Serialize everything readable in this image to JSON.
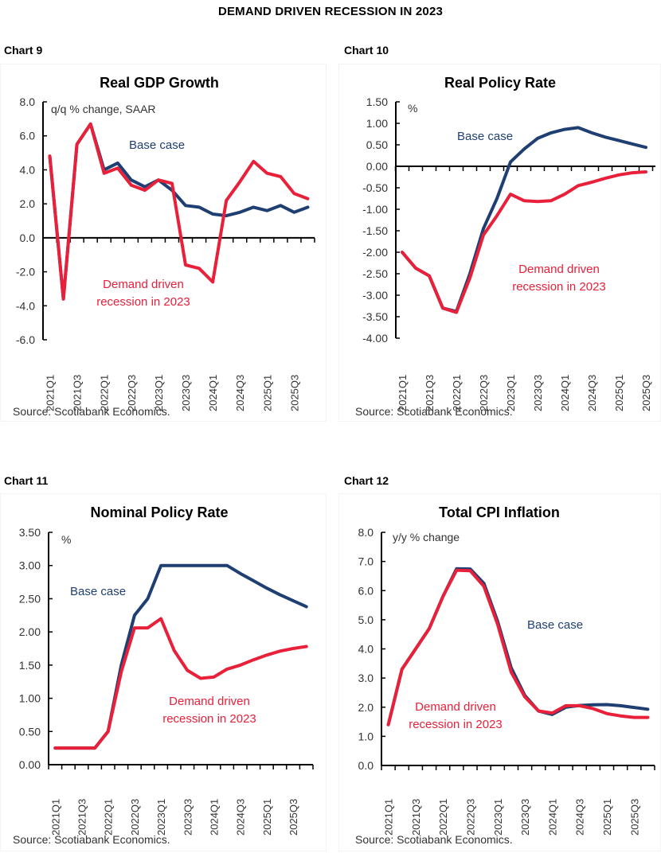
{
  "page": {
    "title": "DEMAND DRIVEN RECESSION IN 2023"
  },
  "colors": {
    "base_case": "#1f3f73",
    "recession": "#e8203a",
    "axis": "#000000"
  },
  "chart_data": [
    {
      "id": "chart9",
      "label": "Chart 9",
      "type": "line",
      "title": "Real GDP Growth",
      "unit_label": "q/q % change, SAAR",
      "source": "Source: Scotiabank Economics.",
      "ylim": [
        -6.0,
        8.0
      ],
      "yticks": [
        8.0,
        6.0,
        4.0,
        2.0,
        0.0,
        -2.0,
        -4.0,
        -6.0
      ],
      "ytick_labels": [
        "8.0",
        "6.0",
        "4.0",
        "2.0",
        "0.0",
        "-2.0",
        "-4.0",
        "-6.0"
      ],
      "x": [
        "2021Q1",
        "2021Q2",
        "2021Q3",
        "2021Q4",
        "2022Q1",
        "2022Q2",
        "2022Q3",
        "2022Q4",
        "2023Q1",
        "2023Q2",
        "2023Q3",
        "2023Q4",
        "2024Q1",
        "2024Q2",
        "2024Q3",
        "2024Q4",
        "2025Q1",
        "2025Q2",
        "2025Q3",
        "2025Q4"
      ],
      "xtick_labels": [
        "2021Q1",
        "2021Q3",
        "2022Q1",
        "2022Q3",
        "2023Q1",
        "2023Q3",
        "2024Q1",
        "2024Q3",
        "2025Q1",
        "2025Q3"
      ],
      "series": [
        {
          "name": "Base case",
          "values": [
            4.8,
            -3.6,
            5.5,
            6.7,
            4.0,
            4.4,
            3.4,
            3.0,
            3.4,
            2.8,
            1.9,
            1.8,
            1.4,
            1.3,
            1.5,
            1.8,
            1.6,
            1.9,
            1.5,
            1.8
          ]
        },
        {
          "name": "Demand driven recession in 2023",
          "values": [
            4.8,
            -3.6,
            5.5,
            6.7,
            3.8,
            4.1,
            3.1,
            2.8,
            3.4,
            3.2,
            -1.6,
            -1.8,
            -2.6,
            2.2,
            3.3,
            4.5,
            3.8,
            3.6,
            2.6,
            2.3
          ]
        }
      ],
      "annotations": {
        "base_case": [
          "Base case"
        ],
        "recession": [
          "Demand driven",
          "recession in 2023"
        ]
      }
    },
    {
      "id": "chart10",
      "label": "Chart 10",
      "type": "line",
      "title": "Real Policy Rate",
      "unit_label": "%",
      "source": "Source: Scotiabank Economics.",
      "ylim": [
        -4.0,
        1.5
      ],
      "yticks": [
        1.5,
        1.0,
        0.5,
        0.0,
        -0.5,
        -1.0,
        -1.5,
        -2.0,
        -2.5,
        -3.0,
        -3.5,
        -4.0
      ],
      "ytick_labels": [
        "1.50",
        "1.00",
        "0.50",
        "0.00",
        "-0.50",
        "-1.00",
        "-1.50",
        "-2.00",
        "-2.50",
        "-3.00",
        "-3.50",
        "-4.00"
      ],
      "x": [
        "2021Q1",
        "2021Q2",
        "2021Q3",
        "2021Q4",
        "2022Q1",
        "2022Q2",
        "2022Q3",
        "2022Q4",
        "2023Q1",
        "2023Q2",
        "2023Q3",
        "2023Q4",
        "2024Q1",
        "2024Q2",
        "2024Q3",
        "2024Q4",
        "2025Q1",
        "2025Q2",
        "2025Q3"
      ],
      "xtick_labels": [
        "2021Q1",
        "2021Q3",
        "2022Q1",
        "2022Q3",
        "2023Q1",
        "2023Q3",
        "2024Q1",
        "2024Q3",
        "2025Q1",
        "2025Q3"
      ],
      "series": [
        {
          "name": "Base case",
          "values": [
            -2.0,
            -2.37,
            -2.55,
            -3.3,
            -3.38,
            -2.5,
            -1.45,
            -0.75,
            0.1,
            0.4,
            0.65,
            0.78,
            0.86,
            0.9,
            0.78,
            0.68,
            0.6,
            0.52,
            0.44
          ]
        },
        {
          "name": "Demand driven recession in 2023",
          "values": [
            -2.0,
            -2.37,
            -2.55,
            -3.3,
            -3.4,
            -2.6,
            -1.6,
            -1.15,
            -0.65,
            -0.8,
            -0.82,
            -0.8,
            -0.65,
            -0.45,
            -0.37,
            -0.28,
            -0.2,
            -0.15,
            -0.13
          ]
        }
      ],
      "annotations": {
        "base_case": [
          "Base case"
        ],
        "recession": [
          "Demand driven",
          "recession in 2023"
        ]
      }
    },
    {
      "id": "chart11",
      "label": "Chart 11",
      "type": "line",
      "title": "Nominal Policy Rate",
      "unit_label": "%",
      "source": "Source: Scotiabank Economics.",
      "ylim": [
        0.0,
        3.5
      ],
      "yticks": [
        3.5,
        3.0,
        2.5,
        2.0,
        1.5,
        1.0,
        0.5,
        0.0
      ],
      "ytick_labels": [
        "3.50",
        "3.00",
        "2.50",
        "2.00",
        "1.50",
        "1.00",
        "0.50",
        "0.00"
      ],
      "x": [
        "2021Q1",
        "2021Q2",
        "2021Q3",
        "2021Q4",
        "2022Q1",
        "2022Q2",
        "2022Q3",
        "2022Q4",
        "2023Q1",
        "2023Q2",
        "2023Q3",
        "2023Q4",
        "2024Q1",
        "2024Q2",
        "2024Q3",
        "2024Q4",
        "2025Q1",
        "2025Q2",
        "2025Q3",
        "2025Q4"
      ],
      "xtick_labels": [
        "2021Q1",
        "2021Q3",
        "2022Q1",
        "2022Q3",
        "2023Q1",
        "2023Q3",
        "2024Q1",
        "2024Q3",
        "2025Q1",
        "2025Q3"
      ],
      "series": [
        {
          "name": "Base case",
          "values": [
            0.25,
            0.25,
            0.25,
            0.25,
            0.5,
            1.5,
            2.25,
            2.5,
            3.0,
            3.0,
            3.0,
            3.0,
            3.0,
            3.0,
            2.88,
            2.77,
            2.66,
            2.56,
            2.47,
            2.38
          ]
        },
        {
          "name": "Demand driven recession in 2023",
          "values": [
            0.25,
            0.25,
            0.25,
            0.25,
            0.5,
            1.4,
            2.06,
            2.06,
            2.2,
            1.72,
            1.42,
            1.3,
            1.32,
            1.44,
            1.5,
            1.58,
            1.65,
            1.71,
            1.75,
            1.78
          ]
        }
      ],
      "annotations": {
        "base_case": [
          "Base case"
        ],
        "recession": [
          "Demand driven",
          "recession in 2023"
        ]
      }
    },
    {
      "id": "chart12",
      "label": "Chart 12",
      "type": "line",
      "title": "Total CPI Inflation",
      "unit_label": "y/y % change",
      "source": "Source: Scotiabank Economics.",
      "ylim": [
        0.0,
        8.0
      ],
      "yticks": [
        8.0,
        7.0,
        6.0,
        5.0,
        4.0,
        3.0,
        2.0,
        1.0,
        0.0
      ],
      "ytick_labels": [
        "8.0",
        "7.0",
        "6.0",
        "5.0",
        "4.0",
        "3.0",
        "2.0",
        "1.0",
        "0.0"
      ],
      "x": [
        "2021Q1",
        "2021Q2",
        "2021Q3",
        "2021Q4",
        "2022Q1",
        "2022Q2",
        "2022Q3",
        "2022Q4",
        "2023Q1",
        "2023Q2",
        "2023Q3",
        "2023Q4",
        "2024Q1",
        "2024Q2",
        "2024Q3",
        "2024Q4",
        "2025Q1",
        "2025Q2",
        "2025Q3",
        "2025Q4"
      ],
      "xtick_labels": [
        "2021Q1",
        "2021Q3",
        "2022Q1",
        "2022Q3",
        "2023Q1",
        "2023Q3",
        "2024Q1",
        "2024Q3",
        "2025Q1",
        "2025Q3"
      ],
      "series": [
        {
          "name": "Base case",
          "values": [
            1.4,
            3.3,
            4.0,
            4.7,
            5.8,
            6.75,
            6.74,
            6.25,
            4.95,
            3.35,
            2.4,
            1.87,
            1.75,
            2.0,
            2.06,
            2.08,
            2.09,
            2.05,
            1.99,
            1.93
          ]
        },
        {
          "name": "Demand driven recession in 2023",
          "values": [
            1.4,
            3.3,
            4.0,
            4.7,
            5.8,
            6.7,
            6.68,
            6.15,
            4.85,
            3.2,
            2.35,
            1.87,
            1.8,
            2.05,
            2.05,
            1.95,
            1.78,
            1.7,
            1.65,
            1.65
          ]
        }
      ],
      "annotations": {
        "base_case": [
          "Base case"
        ],
        "recession": [
          "Demand driven",
          "recession in 2023"
        ]
      }
    }
  ]
}
